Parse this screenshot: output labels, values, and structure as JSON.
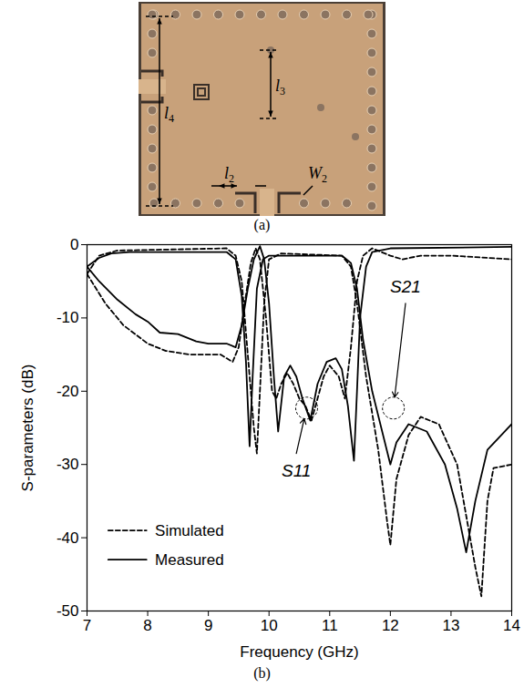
{
  "photo": {
    "labels": [
      "l4",
      "l3",
      "l2",
      "W2"
    ],
    "caption": "(a)"
  },
  "chart_data": {
    "type": "line",
    "caption": "(b)",
    "x_label": "Frequency (GHz)",
    "y_label": "S-parameters (dB)",
    "xlim": [
      7,
      14
    ],
    "xticks": [
      7,
      8,
      9,
      10,
      11,
      12,
      13,
      14
    ],
    "ylim": [
      -50,
      0
    ],
    "yticks": [
      0,
      -10,
      -20,
      -30,
      -40,
      -50
    ],
    "grid": false,
    "legend": "lower left",
    "series": [
      {
        "name": "Simulated",
        "color": "#000000",
        "line_style": "dashed",
        "x": [
          7,
          7.3,
          7.6,
          8,
          8.3,
          8.7,
          9.2,
          9.4,
          9.5,
          9.6,
          9.7,
          9.78,
          9.85,
          9.95,
          10.05,
          10.12,
          10.2,
          10.3,
          10.4,
          10.5,
          10.6,
          10.7,
          10.8,
          10.9,
          11.0,
          11.15,
          11.25,
          11.35,
          11.45,
          11.55,
          11.7,
          12,
          12.2,
          12.5,
          13,
          14
        ],
        "values": [
          -4,
          -8,
          -11,
          -13.5,
          -14.5,
          -15,
          -15,
          -16,
          -14,
          -8,
          -2.5,
          -0.5,
          -2,
          -10,
          -20,
          -21,
          -19,
          -17.5,
          -19,
          -21,
          -22,
          -24,
          -21,
          -18,
          -16.5,
          -18,
          -21,
          -14,
          -5,
          -1.5,
          -0.5,
          -1.5,
          -2,
          -1.5,
          -1.5,
          -2
        ]
      },
      {
        "name": "Measured",
        "color": "#000000",
        "line_style": "solid",
        "x": [
          7,
          7.2,
          7.5,
          7.8,
          8,
          8.2,
          8.5,
          8.8,
          9.0,
          9.3,
          9.45,
          9.55,
          9.65,
          9.75,
          9.85,
          9.92,
          10.0,
          10.08,
          10.15,
          10.25,
          10.35,
          10.45,
          10.55,
          10.68,
          10.8,
          10.95,
          11.1,
          11.2,
          11.3,
          11.4,
          11.45,
          11.5,
          11.6,
          11.7,
          12,
          14
        ],
        "values": [
          -3,
          -5,
          -7.5,
          -9.5,
          -10.5,
          -12,
          -12.2,
          -13.2,
          -13.5,
          -13.5,
          -14,
          -11,
          -6,
          -2,
          -0.2,
          -2,
          -8,
          -18,
          -25.5,
          -18,
          -16.5,
          -18,
          -21,
          -24,
          -19,
          -16,
          -15.5,
          -17,
          -22,
          -29.5,
          -20,
          -10,
          -3,
          -1,
          -0.5,
          -0.3
        ]
      },
      {
        "name": "Simulated",
        "color": "#000000",
        "line_style": "dashed",
        "x": [
          7,
          7.2,
          7.5,
          9.3,
          9.45,
          9.55,
          9.65,
          9.75,
          9.8,
          9.85,
          9.92,
          10.0,
          10.2,
          11.2,
          11.35,
          11.45,
          11.6,
          11.8,
          11.95,
          12.0,
          12.1,
          12.3,
          12.5,
          12.8,
          13.1,
          13.4,
          13.5,
          13.6,
          13.7,
          14
        ],
        "values": [
          -4,
          -1.5,
          -0.8,
          -0.5,
          -1.5,
          -5,
          -15,
          -25,
          -28.5,
          -20,
          -8,
          -2,
          -1.2,
          -1.5,
          -3,
          -8,
          -18,
          -28,
          -38,
          -41,
          -32,
          -26,
          -23.5,
          -24.5,
          -30,
          -44,
          -48,
          -35,
          -30.5,
          -30
        ]
      },
      {
        "name": "Measured",
        "color": "#000000",
        "line_style": "solid",
        "x": [
          7,
          7.2,
          7.4,
          7.7,
          9.3,
          9.45,
          9.55,
          9.62,
          9.68,
          9.73,
          9.8,
          9.9,
          10.0,
          11.2,
          11.35,
          11.45,
          11.55,
          11.7,
          11.85,
          12.0,
          12.1,
          12.3,
          12.6,
          12.9,
          13.1,
          13.25,
          13.4,
          13.6,
          14
        ],
        "values": [
          -3,
          -1.8,
          -1.2,
          -1,
          -1,
          -2,
          -7,
          -16,
          -27.5,
          -18,
          -6,
          -2,
          -1.5,
          -1.5,
          -2.5,
          -6,
          -13,
          -20,
          -25,
          -30,
          -27,
          -24.5,
          -25.5,
          -30,
          -36,
          -42,
          -35,
          -28,
          -24.5
        ]
      }
    ],
    "annotations": [
      {
        "text": "S11",
        "x": 10.45,
        "y": -30,
        "target": [
          10.62,
          -22.3
        ]
      },
      {
        "text": "S21",
        "x": 12.25,
        "y": -6.5,
        "target": [
          12.05,
          -22.3
        ]
      }
    ]
  }
}
